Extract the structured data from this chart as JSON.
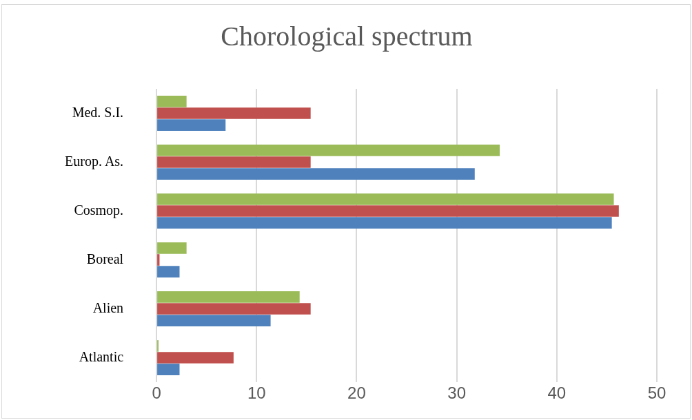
{
  "chart_data": {
    "type": "bar",
    "orientation": "horizontal",
    "title": "Chorological spectrum",
    "categories": [
      "Med. S.I.",
      "Europ. As.",
      "Cosmop.",
      "Boreal",
      "Alien",
      "Atlantic"
    ],
    "series": [
      {
        "color": "#9bbb59",
        "values": [
          3,
          34.3,
          45.7,
          3,
          14.3,
          0.2
        ]
      },
      {
        "color": "#c0504d",
        "values": [
          15.4,
          15.4,
          46.2,
          0.3,
          15.4,
          7.7
        ]
      },
      {
        "color": "#4f81bd",
        "values": [
          6.9,
          31.8,
          45.5,
          2.3,
          11.4,
          2.3
        ]
      }
    ],
    "xlim": [
      0,
      50
    ],
    "xticks": [
      0,
      10,
      20,
      30,
      40,
      50
    ],
    "grid": "x",
    "legend": false
  }
}
